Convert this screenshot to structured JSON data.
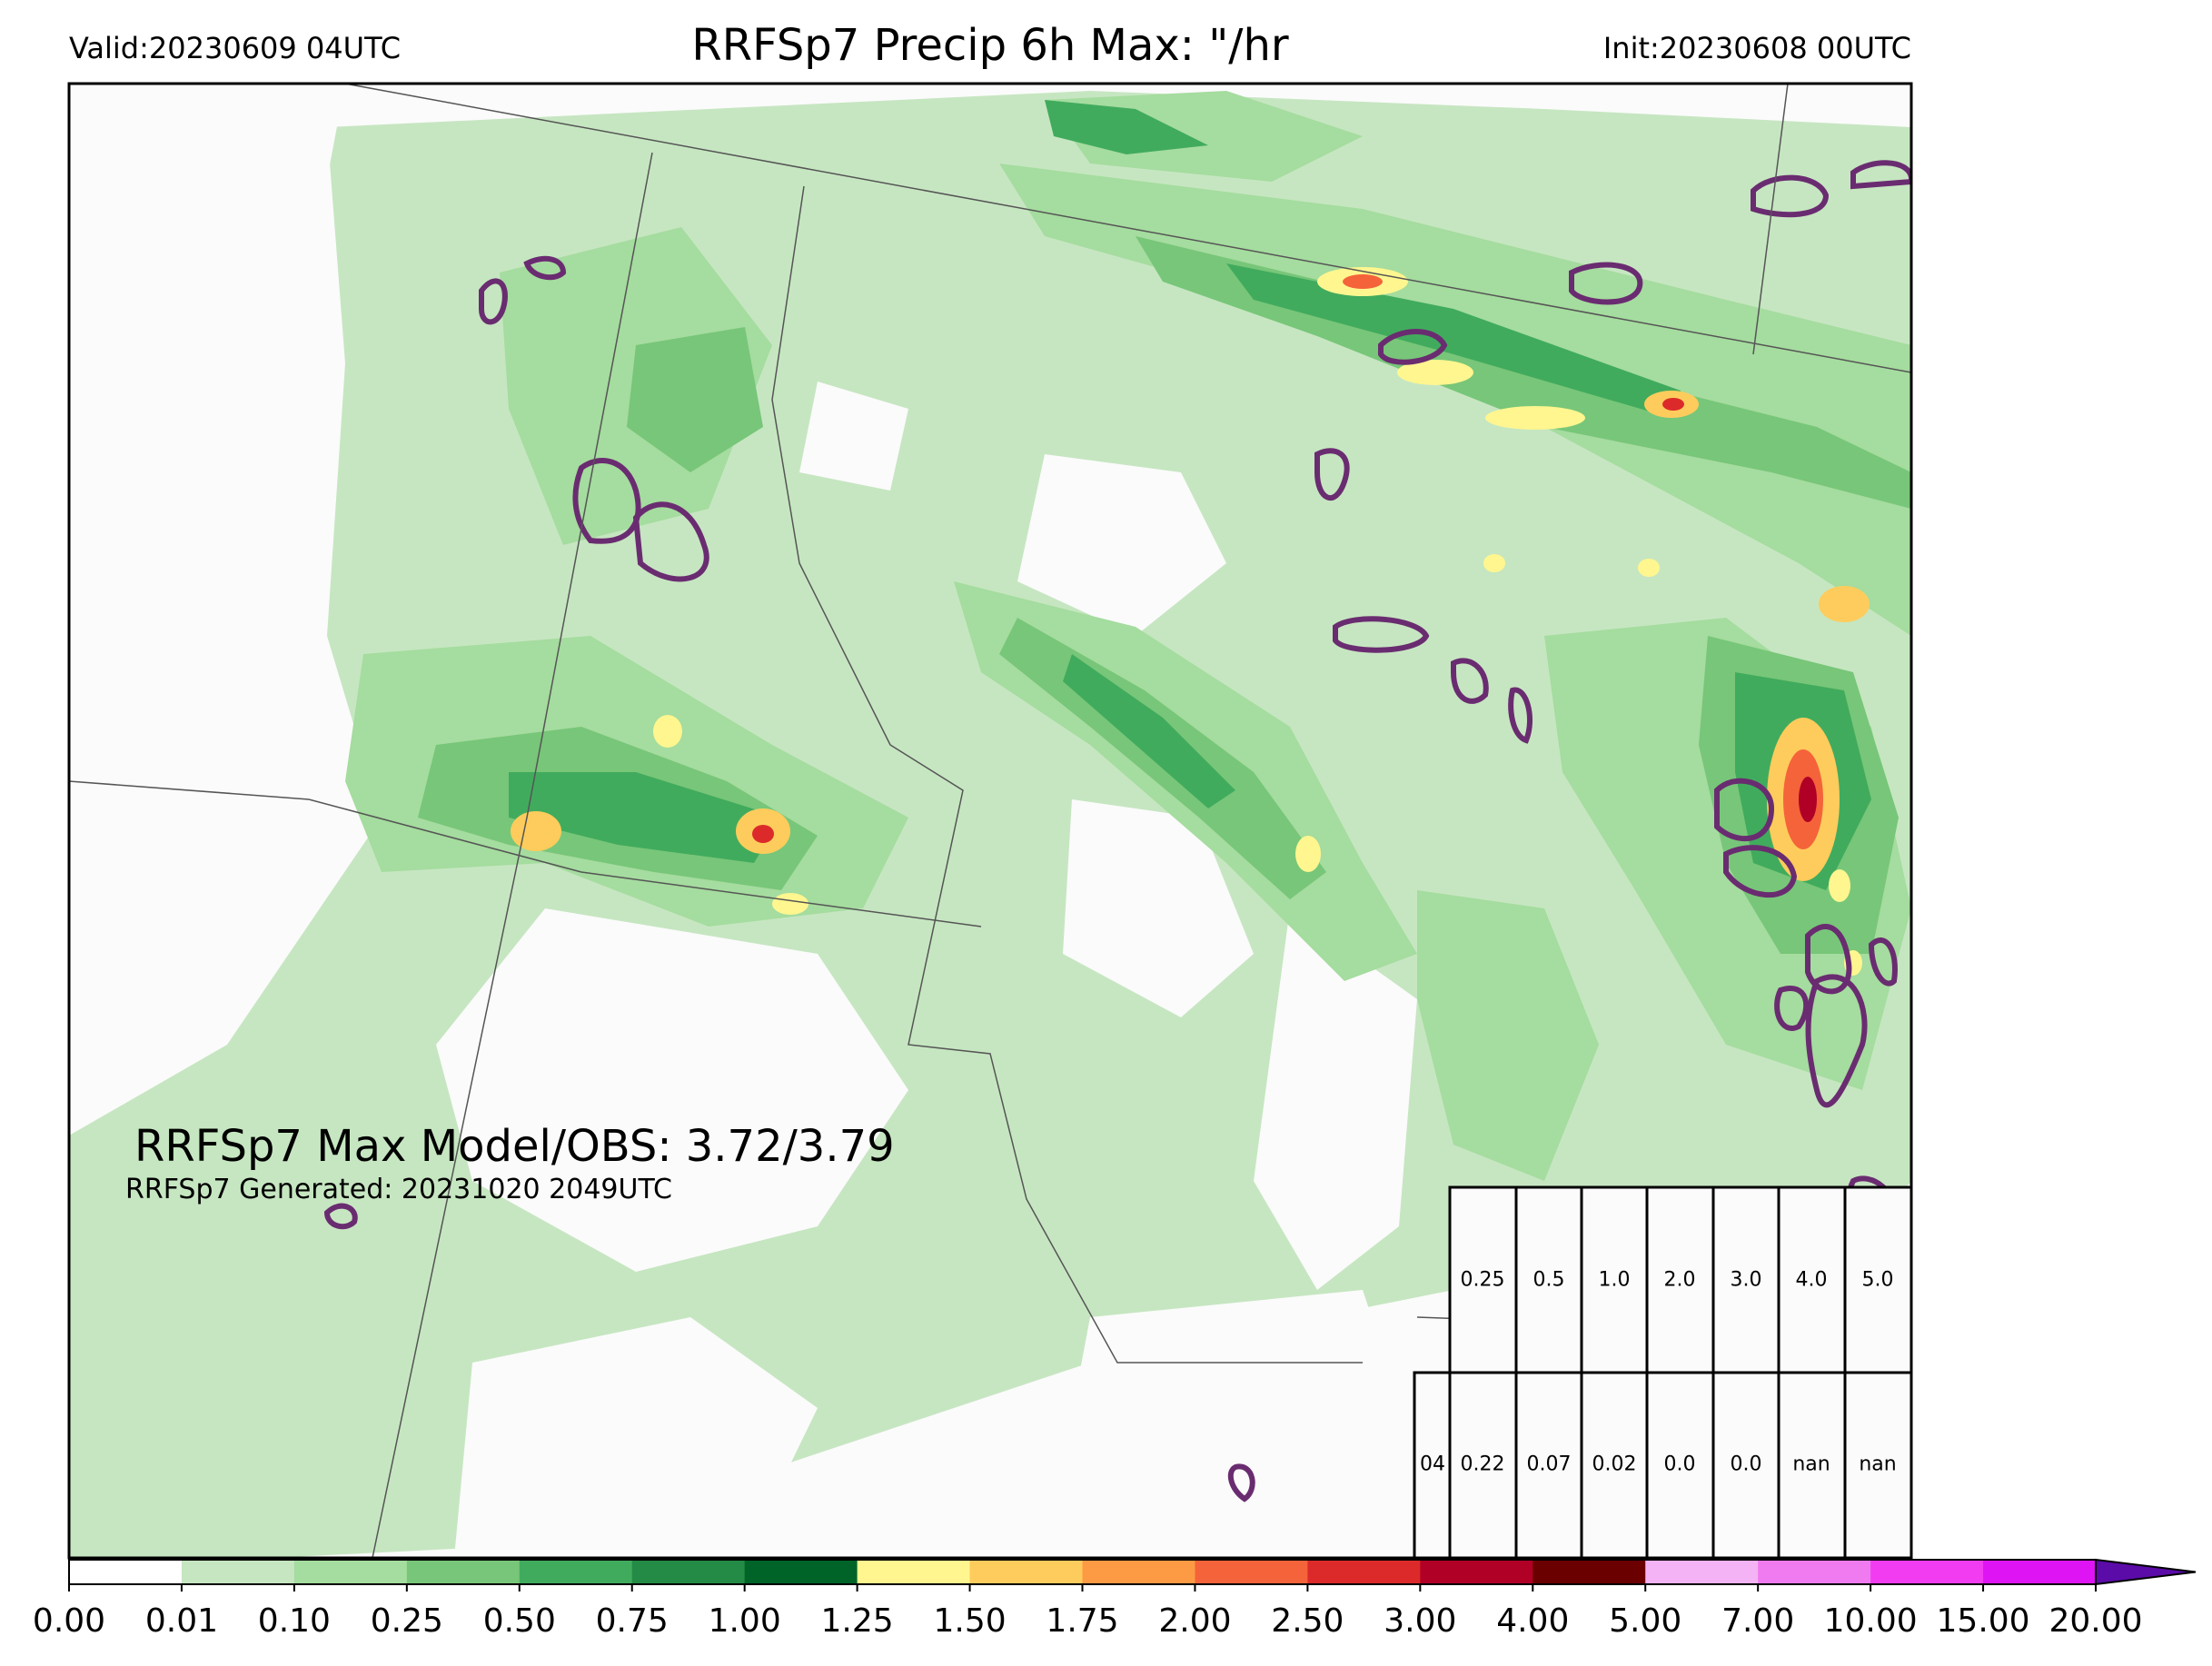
{
  "header": {
    "valid": "Valid:20230609 04UTC",
    "title": "RRFSp7 Precip 6h Max: \"/hr",
    "init": "Init:20230608 00UTC"
  },
  "stats": {
    "max_line": "RRFSp7 Max Model/OBS: 3.72/3.79",
    "generated": "RRFSp7 Generated: 20231020 2049UTC"
  },
  "colorbar": {
    "ticks": [
      "0.00",
      "0.01",
      "0.10",
      "0.25",
      "0.50",
      "0.75",
      "1.00",
      "1.25",
      "1.50",
      "1.75",
      "2.00",
      "2.50",
      "3.00",
      "4.00",
      "5.00",
      "7.00",
      "10.00",
      "15.00",
      "20.00"
    ],
    "colors": [
      "#ffffff",
      "#c6e6c1",
      "#a5dc9f",
      "#78c679",
      "#41ab5d",
      "#238b45",
      "#006428",
      "#fff68f",
      "#fecc5c",
      "#fd9a44",
      "#f5633a",
      "#dc2a2b",
      "#b00026",
      "#6b0000",
      "#f4b3f4",
      "#f07af0",
      "#f23cf2",
      "#df14f5",
      "#9616d6"
    ],
    "extend_color": "#5b0ba8"
  },
  "table": {
    "thresholds": [
      "0.25",
      "0.5",
      "1.0",
      "2.0",
      "3.0",
      "4.0",
      "5.0"
    ],
    "row_label": "04",
    "values": [
      "0.22",
      "0.07",
      "0.02",
      "0.0",
      "0.0",
      "nan",
      "nan"
    ]
  },
  "contour_color": "#6a2c70"
}
